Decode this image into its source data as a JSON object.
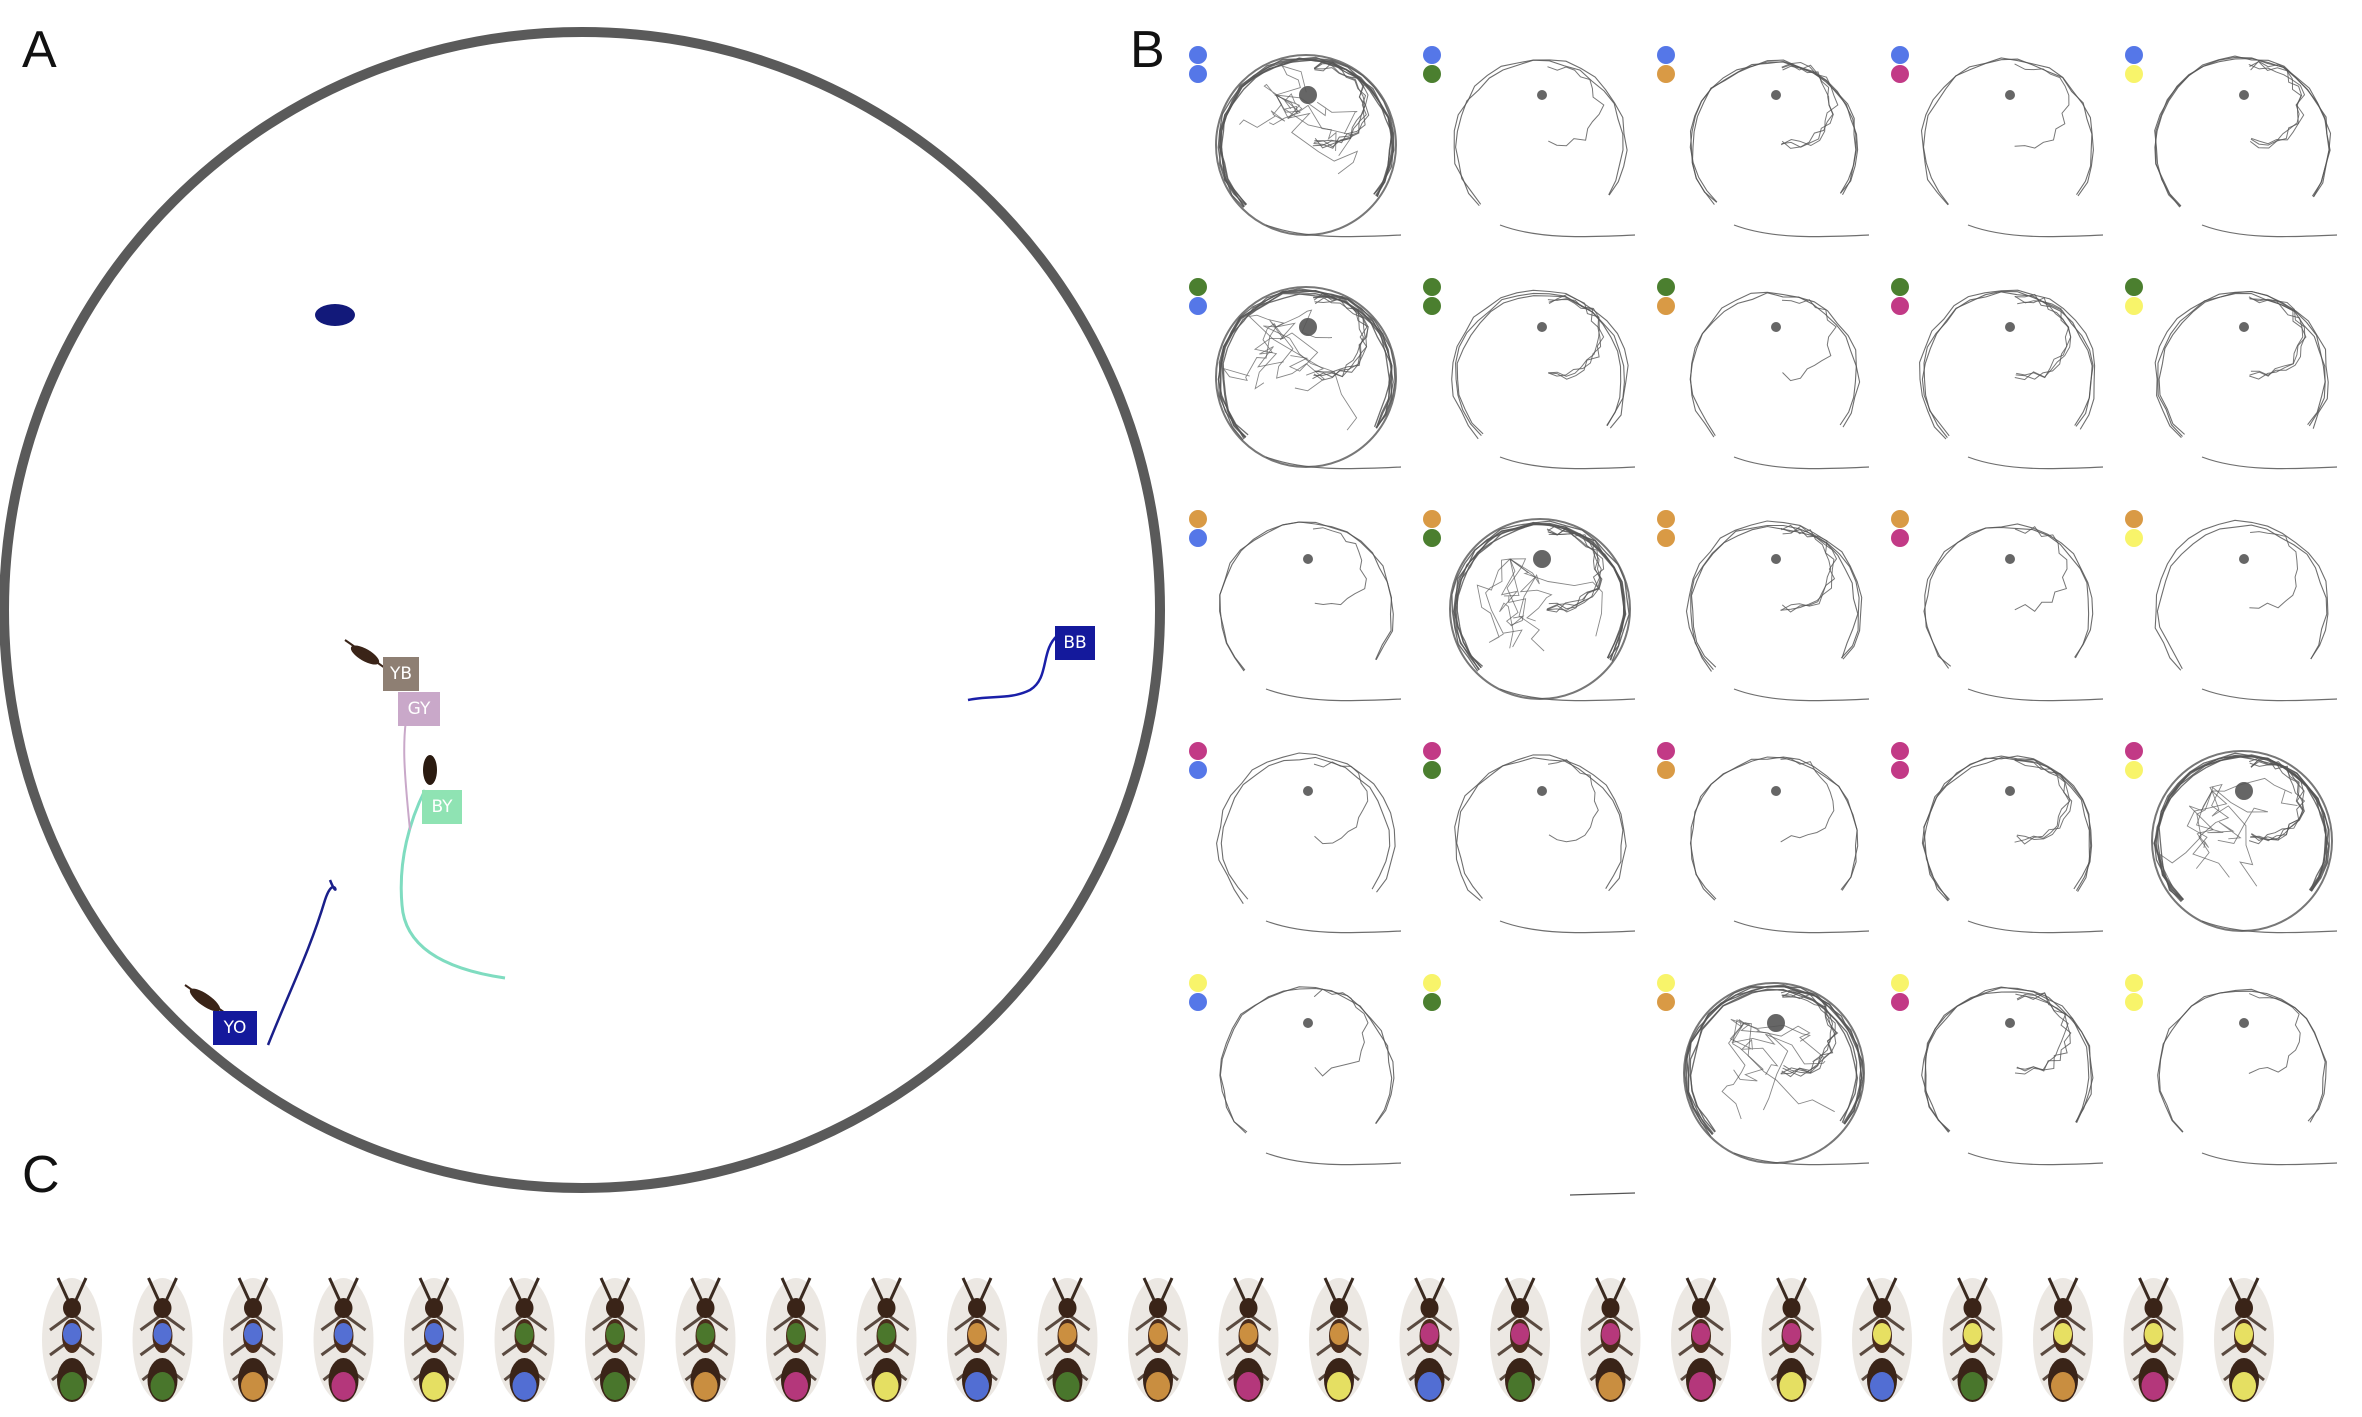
{
  "panels": {
    "a": "A",
    "b": "B",
    "c": "C"
  },
  "arena_tags": [
    {
      "label": "YB",
      "color": "#8e7f73"
    },
    {
      "label": "GY",
      "color": "#c9a8c9"
    },
    {
      "label": "BY",
      "color": "#8fe3b3"
    },
    {
      "label": "YO",
      "color": "#14199c"
    },
    {
      "label": "BB",
      "color": "#14199c"
    }
  ],
  "colors": {
    "blue": "#5577e8",
    "green": "#4b7f2f",
    "orange": "#d99a45",
    "magenta": "#c23a86",
    "yellow": "#f8f46a",
    "arena_rim": "#5a5a5a",
    "trace": "#555555"
  },
  "grid": {
    "rows": [
      "blue",
      "green",
      "orange",
      "magenta",
      "yellow"
    ],
    "cols": [
      "blue",
      "green",
      "orange",
      "magenta",
      "yellow"
    ],
    "density": [
      [
        3,
        1,
        2,
        1,
        2
      ],
      [
        3,
        2,
        1,
        2,
        2
      ],
      [
        1,
        3,
        2,
        1,
        1
      ],
      [
        1,
        1,
        1,
        2,
        3
      ],
      [
        1,
        0,
        3,
        2,
        1
      ]
    ]
  },
  "ant_images": [
    [
      "blue",
      "green"
    ],
    [
      "blue",
      "green"
    ],
    [
      "blue",
      "orange"
    ],
    [
      "blue",
      "magenta"
    ],
    [
      "blue",
      "yellow"
    ],
    [
      "green",
      "blue"
    ],
    [
      "green",
      "green"
    ],
    [
      "green",
      "orange"
    ],
    [
      "green",
      "magenta"
    ],
    [
      "green",
      "yellow"
    ],
    [
      "orange",
      "blue"
    ],
    [
      "orange",
      "green"
    ],
    [
      "orange",
      "orange"
    ],
    [
      "orange",
      "magenta"
    ],
    [
      "orange",
      "yellow"
    ],
    [
      "magenta",
      "blue"
    ],
    [
      "magenta",
      "green"
    ],
    [
      "magenta",
      "orange"
    ],
    [
      "magenta",
      "magenta"
    ],
    [
      "magenta",
      "yellow"
    ],
    [
      "yellow",
      "blue"
    ],
    [
      "yellow",
      "green"
    ],
    [
      "yellow",
      "orange"
    ],
    [
      "yellow",
      "magenta"
    ],
    [
      "yellow",
      "yellow"
    ]
  ]
}
